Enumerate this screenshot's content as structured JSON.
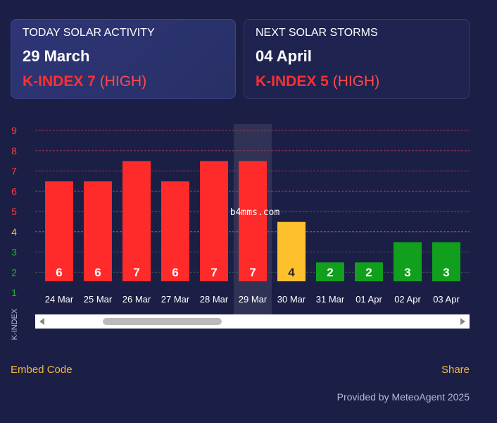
{
  "today": {
    "label": "TODAY SOLAR ACTIVITY",
    "date": "29 March",
    "kindex_text": "K-INDEX 7",
    "level_text": "(HIGH)"
  },
  "next": {
    "label": "NEXT SOLAR STORMS",
    "date": "04 April",
    "kindex_text": "K-INDEX 5",
    "level_text": "(HIGH)"
  },
  "chart_data": {
    "type": "bar",
    "categories": [
      "24 Mar",
      "25 Mar",
      "26 Mar",
      "27 Mar",
      "28 Mar",
      "29 Mar",
      "30 Mar",
      "31 Mar",
      "01 Apr",
      "02 Apr",
      "03 Apr"
    ],
    "values": [
      6,
      6,
      7,
      6,
      7,
      7,
      4,
      2,
      2,
      3,
      3
    ],
    "ylabel": "K-INDEX",
    "ylim": [
      1,
      9
    ],
    "yticks": [
      1,
      2,
      3,
      4,
      5,
      6,
      7,
      8,
      9
    ],
    "highlight_category": "29 Mar",
    "colors": {
      "high": "#ff2b2b",
      "moderate": "#ffc02e",
      "low": "#11a01e",
      "tick_low": "#24b033",
      "tick_mid": "#f7c23e",
      "tick_high": "#ff3b3b"
    },
    "watermark": "b4mms.com"
  },
  "footer": {
    "embed": "Embed Code",
    "share": "Share",
    "provided": "Provided by MeteoAgent 2025"
  }
}
